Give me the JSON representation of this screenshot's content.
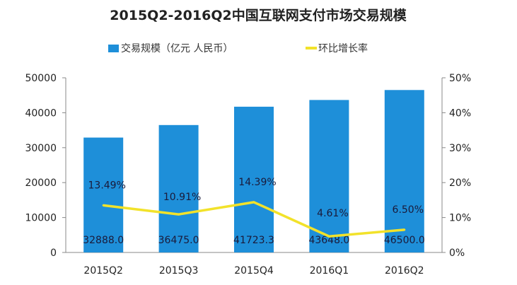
{
  "chart_data": {
    "type": "bar+line",
    "title": "2015Q2-2016Q2中国互联网支付市场交易规模",
    "categories": [
      "2015Q2",
      "2015Q3",
      "2015Q4",
      "2016Q1",
      "2016Q2"
    ],
    "series": [
      {
        "name": "交易规模（亿元 人民币）",
        "type": "bar",
        "axis": "left",
        "color": "#1e8fd9",
        "values": [
          32888.0,
          36475.0,
          41723.3,
          43648.0,
          46500.0
        ],
        "labels": [
          "32888.0",
          "36475.0",
          "41723.3",
          "43648.0",
          "46500.0"
        ]
      },
      {
        "name": "环比增长率",
        "type": "line",
        "axis": "right",
        "color": "#f2e22a",
        "values": [
          13.49,
          10.91,
          14.39,
          4.61,
          6.5
        ],
        "labels": [
          "13.49%",
          "10.91%",
          "14.39%",
          "4.61%",
          "6.50%"
        ]
      }
    ],
    "y_left": {
      "min": 0,
      "max": 50000,
      "ticks": [
        "0",
        "10000",
        "20000",
        "30000",
        "40000",
        "50000"
      ]
    },
    "y_right": {
      "min": 0,
      "max": 50,
      "ticks": [
        "0%",
        "10%",
        "20%",
        "30%",
        "40%",
        "50%"
      ]
    },
    "grid": false,
    "legend": "top"
  }
}
